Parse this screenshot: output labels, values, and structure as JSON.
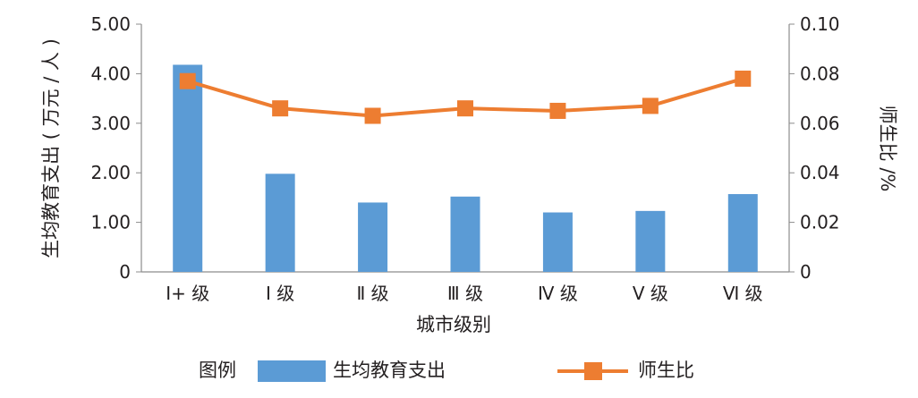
{
  "chart_data": {
    "type": "bar",
    "categories": [
      "Ⅰ+ 级",
      "Ⅰ 级",
      "Ⅱ 级",
      "Ⅲ 级",
      "Ⅳ 级",
      "Ⅴ 级",
      "Ⅵ 级"
    ],
    "series": [
      {
        "name": "生均教育支出",
        "type": "bar",
        "axis": "left",
        "color": "#5b9bd5",
        "values": [
          4.18,
          1.98,
          1.4,
          1.52,
          1.2,
          1.23,
          1.57
        ]
      },
      {
        "name": "师生比",
        "type": "line",
        "axis": "right",
        "color": "#ed7d31",
        "marker": "square",
        "values": [
          0.077,
          0.066,
          0.063,
          0.066,
          0.065,
          0.067,
          0.078
        ]
      }
    ],
    "xlabel": "城市级别",
    "ylabel_left": "生均教育支出 ( 万元 / 人 )",
    "ylabel_right": "师生比 /%",
    "ylim_left": [
      0,
      5
    ],
    "ylim_right": [
      0,
      0.1
    ],
    "yticks_left": [
      "0",
      "1.00",
      "2.00",
      "3.00",
      "4.00",
      "5.00"
    ],
    "yticks_right": [
      "0",
      "0.02",
      "0.04",
      "0.06",
      "0.08",
      "0.10"
    ],
    "grid": false,
    "legend": {
      "title": "图例",
      "placement": "bottom"
    }
  }
}
